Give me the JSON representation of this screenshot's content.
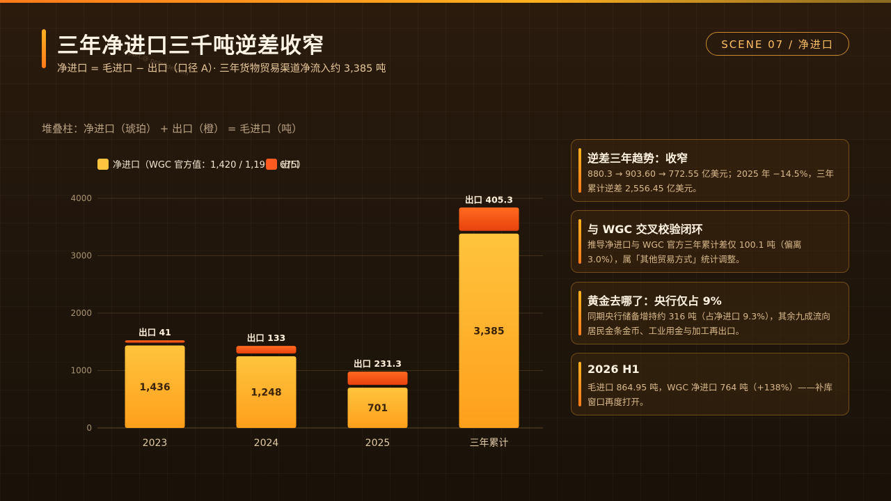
{
  "header": {
    "title": "三年净进口三千吨逆差收窄",
    "subtitle": "净进口 = 毛进口 − 出口（口径 A）· 三年货物贸易渠道净流入约 3,385 吨",
    "watermark": "report.@ pptslide.com",
    "scene_badge": "SCENE 07 / 净进口"
  },
  "chart_caption": "堆叠柱：净进口（琥珀） + 出口（橙） = 毛进口（吨）",
  "legend": [
    {
      "label": "净进口（WGC 官方值：1,420 / 1,190 / 675）",
      "color": "#ffc43d"
    },
    {
      "label": "出口",
      "color": "#ff5a1f"
    }
  ],
  "chart_data": {
    "type": "bar",
    "stacked": true,
    "categories": [
      "2023",
      "2024",
      "2025",
      "三年累计"
    ],
    "series": [
      {
        "name": "净进口",
        "values": [
          1436,
          1248,
          701,
          3385
        ],
        "color": "#ffc43d"
      },
      {
        "name": "出口",
        "values": [
          41,
          133,
          231.3,
          405.3
        ],
        "color": "#ff5a1f"
      }
    ],
    "net_labels": [
      "1,436",
      "1,248",
      "701",
      "3,385"
    ],
    "export_labels": [
      "出口 41",
      "出口 133",
      "出口 231.3",
      "出口 405.3"
    ],
    "yticks": [
      0,
      1000,
      2000,
      3000,
      4000
    ],
    "ylim": [
      0,
      4000
    ],
    "grid": true
  },
  "cards": [
    {
      "title": "逆差三年趋势：收窄",
      "body": "880.3 → 903.60 → 772.55 亿美元；2025 年 −14.5%，三年累计逆差 2,556.45 亿美元。"
    },
    {
      "title": "与 WGC 交叉校验闭环",
      "body": "推导净进口与 WGC 官方三年累计差仅 100.1 吨（偏离 3.0%），属「其他贸易方式」统计调整。"
    },
    {
      "title": "黄金去哪了：央行仅占 9%",
      "body": "同期央行储备增持约 316 吨（占净进口 9.3%），其余九成流向居民金条金币、工业用金与加工再出口。"
    },
    {
      "title": "2026 H1",
      "body": "毛进口 864.95 吨，WGC 净进口 764 吨（+138%）——补库窗口再度打开。"
    }
  ]
}
